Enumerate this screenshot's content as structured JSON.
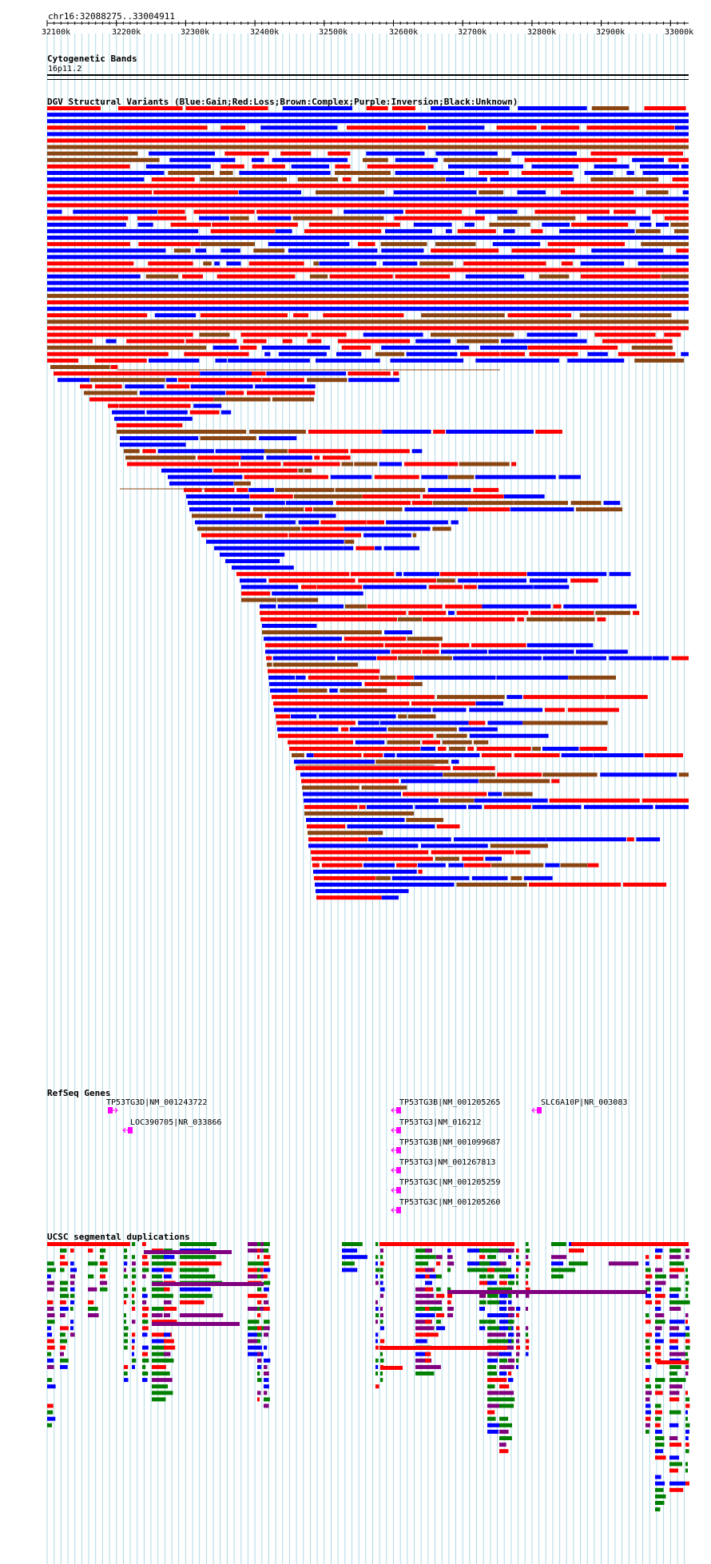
{
  "location": "chr16:32088275..33004911",
  "ruler": {
    "ticks": [
      "32100k",
      "32200k",
      "32300k",
      "32400k",
      "32500k",
      "32600k",
      "32700k",
      "32800k",
      "32900k",
      "33000k"
    ]
  },
  "cytoband": {
    "title": "Cytogenetic Bands",
    "band": "16p11.2"
  },
  "dgv": {
    "title": "DGV Structural Variants (Blue:Gain;Red:Loss;Brown:Complex;Purple:Inversion;Black:Unknown)"
  },
  "refseq": {
    "title": "RefSeq Genes",
    "genes": [
      {
        "label": "TP53TG3D|NM_001243722",
        "strand": "+"
      },
      {
        "label": "LOC390705|NR_033866",
        "strand": "-"
      },
      {
        "label": "TP53TG3B|NM_001205265",
        "strand": "-"
      },
      {
        "label": "TP53TG3|NM_016212",
        "strand": "-"
      },
      {
        "label": "TP53TG3B|NM_001099687",
        "strand": "-"
      },
      {
        "label": "TP53TG3|NM_001267813",
        "strand": "-"
      },
      {
        "label": "TP53TG3C|NM_001205259",
        "strand": "-"
      },
      {
        "label": "TP53TG3C|NM_001205260",
        "strand": "-"
      },
      {
        "label": "SLC6A10P|NR_003083",
        "strand": "-"
      }
    ]
  },
  "segdup": {
    "title": "UCSC segmental duplications"
  },
  "colors": {
    "gain": "#0000ff",
    "loss": "#ff0000",
    "complex": "#8b4513",
    "inversion": "#800080",
    "unknown": "#000000",
    "segdup_green": "#008000",
    "gene": "#ff00ff",
    "grid": "#add8e6"
  }
}
